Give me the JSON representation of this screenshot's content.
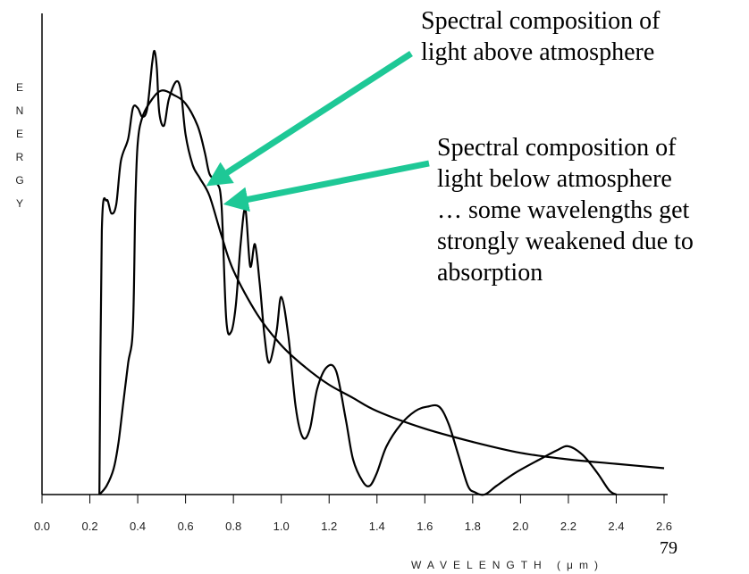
{
  "page": {
    "number": "79"
  },
  "annotations": {
    "above": {
      "lines": [
        "Spectral composition of",
        "light above atmosphere"
      ]
    },
    "below": {
      "lines": [
        "Spectral composition of",
        "light below atmosphere",
        "… some wavelengths get",
        "strongly weakened due to",
        "absorption"
      ]
    }
  },
  "colors": {
    "curve": "#000000",
    "arrow": "#1ec896",
    "axis": "#000000"
  },
  "chart_data": {
    "type": "line",
    "xlabel": "WAVELENGTH (μm)",
    "ylabel": "ENERGY",
    "xlim": [
      0.0,
      2.6
    ],
    "ylim": [
      0,
      100
    ],
    "x_ticks": [
      "0.0",
      "0.2",
      "0.4",
      "0.6",
      "0.8",
      "1.0",
      "1.2",
      "1.4",
      "1.6",
      "1.8",
      "2.0",
      "2.2",
      "2.4",
      "2.6"
    ],
    "grid": false,
    "series": [
      {
        "id": "above",
        "x": [
          0.24,
          0.25,
          0.27,
          0.29,
          0.31,
          0.33,
          0.36,
          0.38,
          0.4,
          0.42,
          0.44,
          0.46,
          0.47,
          0.48,
          0.49,
          0.51,
          0.53,
          0.56,
          0.58,
          0.6,
          0.63,
          0.66,
          0.7,
          0.75,
          0.8,
          0.9,
          1.0,
          1.1,
          1.2,
          1.3,
          1.4,
          1.6,
          1.8,
          2.0,
          2.2,
          2.4,
          2.6
        ],
        "y": [
          0,
          60,
          67,
          64,
          66,
          76,
          81,
          88,
          88,
          86,
          88,
          98,
          101,
          97,
          87,
          84,
          90,
          94,
          92,
          82,
          75,
          72,
          68,
          59,
          51,
          41,
          34,
          29,
          25,
          22,
          19,
          15,
          12,
          9.5,
          8,
          7,
          6
        ]
      },
      {
        "id": "below",
        "x": [
          0.24,
          0.27,
          0.3,
          0.32,
          0.34,
          0.36,
          0.38,
          0.39,
          0.4,
          0.42,
          0.46,
          0.5,
          0.55,
          0.6,
          0.65,
          0.68,
          0.7,
          0.73,
          0.75,
          0.77,
          0.79,
          0.81,
          0.83,
          0.85,
          0.87,
          0.89,
          0.91,
          0.93,
          0.95,
          0.98,
          1.0,
          1.03,
          1.06,
          1.09,
          1.12,
          1.15,
          1.19,
          1.23,
          1.27,
          1.3,
          1.34,
          1.37,
          1.4,
          1.44,
          1.5,
          1.56,
          1.61,
          1.66,
          1.7,
          1.74,
          1.78,
          1.81,
          1.85,
          1.9,
          1.98,
          2.08,
          2.15,
          2.2,
          2.26,
          2.32,
          2.37,
          2.4
        ],
        "y": [
          0,
          2,
          6,
          12,
          21,
          30,
          38,
          66,
          80,
          86,
          90,
          92,
          91,
          89,
          84,
          78,
          73,
          71,
          66,
          40,
          37,
          43,
          57,
          65,
          52,
          57,
          48,
          36,
          30,
          37,
          45,
          36,
          20,
          13,
          15,
          24,
          29,
          28,
          17,
          8,
          3,
          2,
          5,
          11,
          16,
          19,
          20,
          20,
          16,
          9,
          2,
          0.5,
          0,
          2,
          5,
          8,
          10,
          11,
          9,
          5,
          1,
          0
        ]
      }
    ]
  }
}
